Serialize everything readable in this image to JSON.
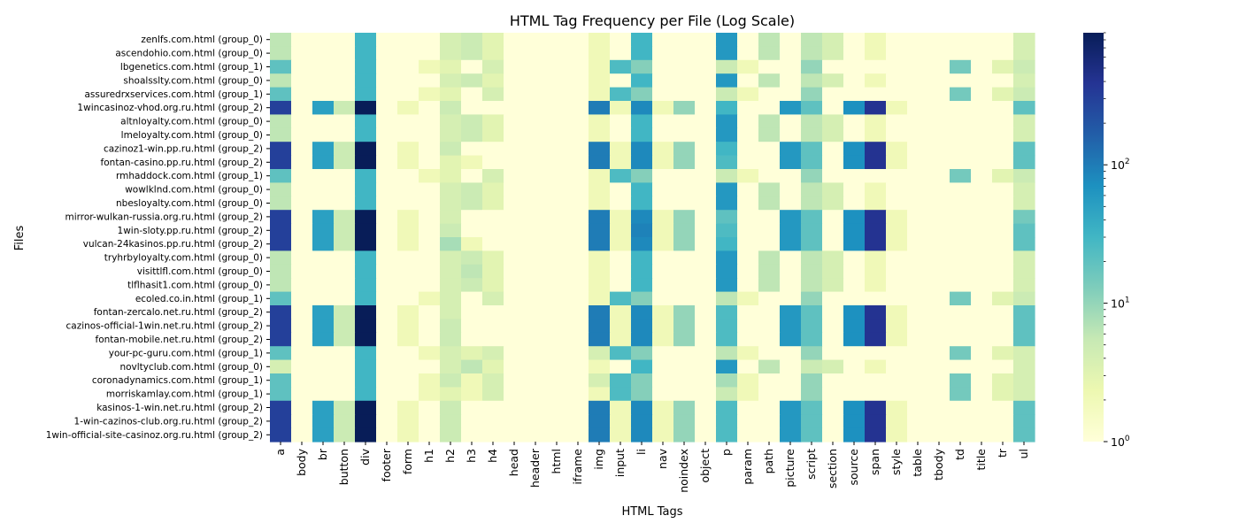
{
  "chart_data": {
    "type": "heatmap",
    "title": "HTML Tag Frequency per File (Log Scale)",
    "xlabel": "HTML Tags",
    "ylabel": "Files",
    "scale": "log",
    "colormap": "YlGnBu",
    "vmin": 1,
    "vmax": 900,
    "colorbar_ticks": [
      {
        "value": 1,
        "base": "10",
        "exp": "0"
      },
      {
        "value": 10,
        "base": "10",
        "exp": "1"
      },
      {
        "value": 100,
        "base": "10",
        "exp": "2"
      }
    ],
    "x": [
      "a",
      "body",
      "br",
      "button",
      "div",
      "footer",
      "form",
      "h1",
      "h2",
      "h3",
      "h4",
      "head",
      "header",
      "html",
      "iframe",
      "img",
      "input",
      "li",
      "nav",
      "noindex",
      "object",
      "p",
      "param",
      "path",
      "picture",
      "script",
      "section",
      "source",
      "span",
      "style",
      "table",
      "tbody",
      "td",
      "title",
      "tr",
      "ul"
    ],
    "y": [
      "zenlfs.com.html (group_0)",
      "ascendohio.com.html (group_0)",
      "lbgenetics.com.html (group_1)",
      "shoalsslty.com.html (group_0)",
      "assuredrxservices.com.html (group_1)",
      "1wincasinoz-vhod.org.ru.html (group_2)",
      "altnloyalty.com.html (group_0)",
      "lmeloyalty.com.html (group_0)",
      "cazinoz1-win.pp.ru.html (group_2)",
      "fontan-casino.pp.ru.html (group_2)",
      "rmhaddock.com.html (group_1)",
      "wowlklnd.com.html (group_0)",
      "nbesloyalty.com.html (group_0)",
      "mirror-wulkan-russia.org.ru.html (group_2)",
      "1win-sloty.pp.ru.html (group_2)",
      "vulcan-24kasinos.pp.ru.html (group_2)",
      "tryhrbyloyalty.com.html (group_0)",
      "visittlfl.com.html (group_0)",
      "tlflhasit1.com.html (group_0)",
      "ecoled.co.in.html (group_1)",
      "fontan-zercalo.net.ru.html (group_2)",
      "cazinos-official-1win.net.ru.html (group_2)",
      "fontan-mobile.net.ru.html (group_2)",
      "your-pc-guru.com.html (group_1)",
      "novltyclub.com.html (group_0)",
      "coronadynamics.com.html (group_1)",
      "morriskamlay.com.html (group_1)",
      "kasinos-1-win.net.ru.html (group_2)",
      "1-win-cazinos-club.org.ru.html (group_2)",
      "1win-official-site-casinoz.org.ru.html (group_2)"
    ],
    "values": [
      [
        6,
        1,
        1,
        1,
        30,
        1,
        1,
        1,
        4,
        5,
        3,
        1,
        1,
        1,
        1,
        2,
        1,
        30,
        1,
        1,
        1,
        60,
        1,
        6,
        1,
        6,
        4,
        1,
        2,
        1,
        1,
        1,
        1,
        1,
        1,
        4
      ],
      [
        6,
        1,
        1,
        1,
        30,
        1,
        1,
        1,
        4,
        5,
        3,
        1,
        1,
        1,
        1,
        2,
        1,
        30,
        1,
        1,
        1,
        60,
        1,
        6,
        1,
        6,
        4,
        1,
        2,
        1,
        1,
        1,
        1,
        1,
        1,
        4
      ],
      [
        20,
        1,
        1,
        1,
        30,
        1,
        1,
        2,
        3,
        1,
        4,
        1,
        1,
        1,
        1,
        2,
        25,
        12,
        1,
        1,
        1,
        5,
        2,
        1,
        1,
        10,
        1,
        1,
        1,
        1,
        1,
        1,
        15,
        1,
        3,
        5
      ],
      [
        6,
        1,
        1,
        1,
        30,
        1,
        1,
        1,
        4,
        5,
        3,
        1,
        1,
        1,
        1,
        2,
        1,
        30,
        1,
        1,
        1,
        60,
        1,
        6,
        1,
        6,
        4,
        1,
        2,
        1,
        1,
        1,
        1,
        1,
        1,
        4
      ],
      [
        20,
        1,
        1,
        1,
        30,
        1,
        1,
        2,
        3,
        1,
        4,
        1,
        1,
        1,
        1,
        2,
        25,
        12,
        1,
        1,
        1,
        5,
        2,
        1,
        1,
        10,
        1,
        1,
        1,
        1,
        1,
        1,
        15,
        1,
        3,
        5
      ],
      [
        300,
        1,
        50,
        5,
        900,
        1,
        2,
        1,
        5,
        1,
        1,
        1,
        1,
        1,
        1,
        100,
        2,
        80,
        2,
        10,
        1,
        30,
        1,
        1,
        60,
        20,
        1,
        70,
        400,
        2,
        1,
        1,
        1,
        1,
        1,
        20
      ],
      [
        6,
        1,
        1,
        1,
        30,
        1,
        1,
        1,
        4,
        5,
        3,
        1,
        1,
        1,
        1,
        2,
        1,
        30,
        1,
        1,
        1,
        60,
        1,
        6,
        1,
        6,
        4,
        1,
        2,
        1,
        1,
        1,
        1,
        1,
        1,
        4
      ],
      [
        6,
        1,
        1,
        1,
        30,
        1,
        1,
        1,
        4,
        5,
        3,
        1,
        1,
        1,
        1,
        2,
        1,
        30,
        1,
        1,
        1,
        60,
        1,
        6,
        1,
        6,
        4,
        1,
        2,
        1,
        1,
        1,
        1,
        1,
        1,
        4
      ],
      [
        300,
        1,
        50,
        5,
        900,
        1,
        2,
        1,
        5,
        1,
        1,
        1,
        1,
        1,
        1,
        100,
        2,
        80,
        2,
        10,
        1,
        30,
        1,
        1,
        60,
        20,
        1,
        70,
        400,
        2,
        1,
        1,
        1,
        1,
        1,
        20
      ],
      [
        300,
        1,
        50,
        5,
        900,
        1,
        2,
        1,
        3,
        2,
        1,
        1,
        1,
        1,
        1,
        100,
        2,
        80,
        2,
        10,
        1,
        25,
        1,
        1,
        60,
        20,
        1,
        70,
        400,
        2,
        1,
        1,
        1,
        1,
        1,
        20
      ],
      [
        20,
        1,
        1,
        1,
        30,
        1,
        1,
        2,
        3,
        1,
        4,
        1,
        1,
        1,
        1,
        2,
        25,
        12,
        1,
        1,
        1,
        5,
        2,
        1,
        1,
        10,
        1,
        1,
        1,
        1,
        1,
        1,
        15,
        1,
        3,
        5
      ],
      [
        6,
        1,
        1,
        1,
        30,
        1,
        1,
        1,
        4,
        5,
        3,
        1,
        1,
        1,
        1,
        2,
        1,
        30,
        1,
        1,
        1,
        60,
        1,
        6,
        1,
        6,
        4,
        1,
        2,
        1,
        1,
        1,
        1,
        1,
        1,
        4
      ],
      [
        6,
        1,
        1,
        1,
        30,
        1,
        1,
        1,
        4,
        5,
        3,
        1,
        1,
        1,
        1,
        2,
        1,
        30,
        1,
        1,
        1,
        60,
        1,
        6,
        1,
        6,
        4,
        1,
        2,
        1,
        1,
        1,
        1,
        1,
        1,
        4
      ],
      [
        300,
        1,
        50,
        5,
        900,
        1,
        2,
        1,
        4,
        1,
        1,
        1,
        1,
        1,
        1,
        100,
        2,
        80,
        2,
        10,
        1,
        20,
        1,
        1,
        60,
        20,
        1,
        70,
        400,
        2,
        1,
        1,
        1,
        1,
        1,
        15
      ],
      [
        300,
        1,
        50,
        5,
        900,
        1,
        2,
        1,
        5,
        1,
        1,
        1,
        1,
        1,
        1,
        100,
        2,
        90,
        2,
        10,
        1,
        25,
        1,
        1,
        60,
        20,
        1,
        70,
        400,
        2,
        1,
        1,
        1,
        1,
        1,
        20
      ],
      [
        300,
        1,
        50,
        5,
        900,
        1,
        2,
        1,
        8,
        2,
        1,
        1,
        1,
        1,
        1,
        100,
        2,
        80,
        2,
        10,
        1,
        30,
        1,
        1,
        60,
        20,
        1,
        70,
        400,
        2,
        1,
        1,
        1,
        1,
        1,
        20
      ],
      [
        6,
        1,
        1,
        1,
        30,
        1,
        1,
        1,
        4,
        5,
        3,
        1,
        1,
        1,
        1,
        2,
        1,
        30,
        1,
        1,
        1,
        60,
        1,
        6,
        1,
        6,
        4,
        1,
        2,
        1,
        1,
        1,
        1,
        1,
        1,
        4
      ],
      [
        6,
        1,
        1,
        1,
        30,
        1,
        1,
        1,
        4,
        6,
        3,
        1,
        1,
        1,
        1,
        2,
        1,
        30,
        1,
        1,
        1,
        60,
        1,
        6,
        1,
        6,
        4,
        1,
        2,
        1,
        1,
        1,
        1,
        1,
        1,
        4
      ],
      [
        6,
        1,
        1,
        1,
        30,
        1,
        1,
        1,
        4,
        5,
        3,
        1,
        1,
        1,
        1,
        2,
        1,
        30,
        1,
        1,
        1,
        60,
        1,
        6,
        1,
        6,
        4,
        1,
        2,
        1,
        1,
        1,
        1,
        1,
        1,
        4
      ],
      [
        20,
        1,
        1,
        1,
        30,
        1,
        1,
        2,
        4,
        1,
        4,
        1,
        1,
        1,
        1,
        2,
        25,
        12,
        1,
        1,
        1,
        6,
        2,
        1,
        1,
        10,
        1,
        1,
        1,
        1,
        1,
        1,
        15,
        1,
        3,
        5
      ],
      [
        300,
        1,
        50,
        5,
        900,
        1,
        2,
        1,
        4,
        1,
        1,
        1,
        1,
        1,
        1,
        100,
        2,
        80,
        2,
        10,
        1,
        25,
        1,
        1,
        60,
        20,
        1,
        70,
        400,
        2,
        1,
        1,
        1,
        1,
        1,
        20
      ],
      [
        300,
        1,
        50,
        5,
        900,
        1,
        2,
        1,
        5,
        1,
        1,
        1,
        1,
        1,
        1,
        100,
        2,
        80,
        2,
        10,
        1,
        25,
        1,
        1,
        60,
        20,
        1,
        70,
        400,
        2,
        1,
        1,
        1,
        1,
        1,
        20
      ],
      [
        300,
        1,
        50,
        5,
        900,
        1,
        2,
        1,
        5,
        1,
        1,
        1,
        1,
        1,
        1,
        100,
        2,
        80,
        2,
        10,
        1,
        25,
        1,
        1,
        60,
        20,
        1,
        70,
        400,
        2,
        1,
        1,
        1,
        1,
        1,
        20
      ],
      [
        20,
        1,
        1,
        1,
        30,
        1,
        1,
        2,
        4,
        3,
        4,
        1,
        1,
        1,
        1,
        4,
        25,
        12,
        1,
        1,
        1,
        6,
        2,
        1,
        1,
        10,
        1,
        1,
        1,
        1,
        1,
        1,
        15,
        1,
        3,
        4
      ],
      [
        4,
        1,
        1,
        1,
        30,
        1,
        1,
        1,
        4,
        6,
        3,
        1,
        1,
        1,
        1,
        2,
        1,
        30,
        1,
        1,
        1,
        60,
        1,
        6,
        1,
        5,
        4,
        1,
        2,
        1,
        1,
        1,
        1,
        1,
        1,
        4
      ],
      [
        20,
        1,
        1,
        1,
        30,
        1,
        1,
        2,
        5,
        2,
        4,
        1,
        1,
        1,
        1,
        4,
        25,
        12,
        1,
        1,
        1,
        8,
        2,
        1,
        1,
        10,
        1,
        1,
        1,
        1,
        1,
        1,
        15,
        1,
        3,
        4
      ],
      [
        20,
        1,
        1,
        1,
        30,
        1,
        1,
        2,
        3,
        2,
        4,
        1,
        1,
        1,
        1,
        2,
        25,
        12,
        1,
        1,
        1,
        5,
        2,
        1,
        1,
        10,
        1,
        1,
        1,
        1,
        1,
        1,
        15,
        1,
        3,
        4
      ],
      [
        300,
        1,
        50,
        5,
        900,
        1,
        2,
        1,
        5,
        1,
        1,
        1,
        1,
        1,
        1,
        100,
        2,
        80,
        2,
        10,
        1,
        25,
        1,
        1,
        60,
        20,
        1,
        70,
        400,
        2,
        1,
        1,
        1,
        1,
        1,
        20
      ],
      [
        300,
        1,
        50,
        5,
        900,
        1,
        2,
        1,
        5,
        1,
        1,
        1,
        1,
        1,
        1,
        100,
        2,
        80,
        2,
        10,
        1,
        25,
        1,
        1,
        60,
        20,
        1,
        70,
        400,
        2,
        1,
        1,
        1,
        1,
        1,
        20
      ],
      [
        300,
        1,
        50,
        5,
        900,
        1,
        2,
        1,
        5,
        1,
        1,
        1,
        1,
        1,
        1,
        100,
        2,
        80,
        2,
        10,
        1,
        25,
        1,
        1,
        60,
        20,
        1,
        70,
        400,
        2,
        1,
        1,
        1,
        1,
        1,
        20
      ]
    ]
  }
}
